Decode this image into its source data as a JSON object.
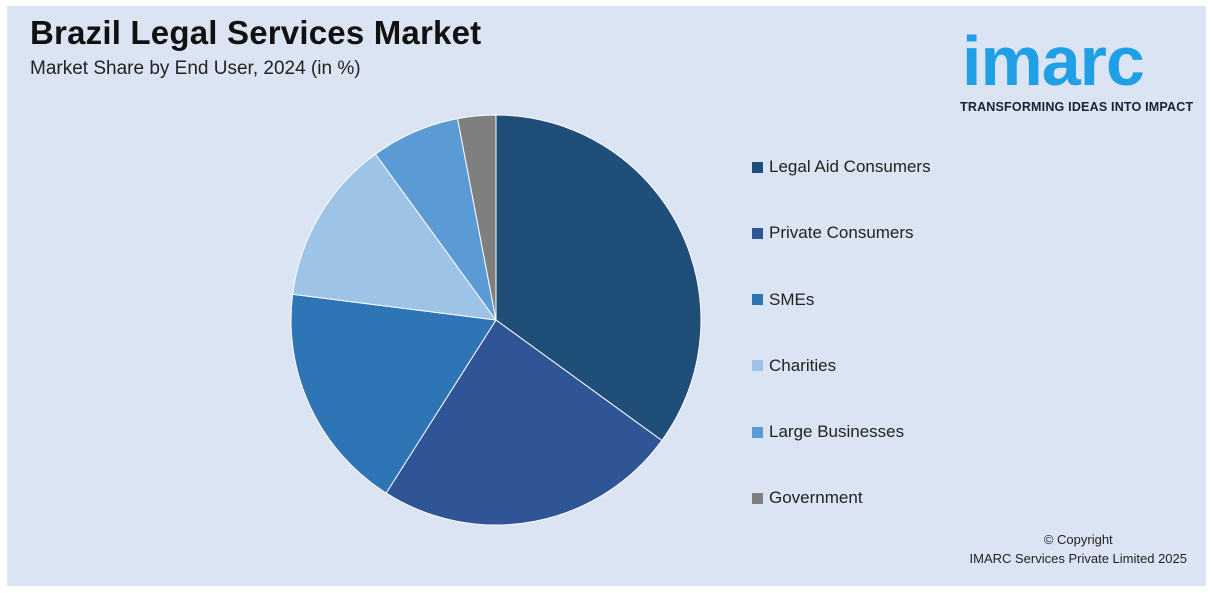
{
  "header": {
    "title": "Brazil Legal Services Market",
    "subtitle": "Market Share by End User, 2024 (in %)"
  },
  "logo": {
    "wordmark": "imarc",
    "tagline": "TRANSFORMING IDEAS INTO IMPACT",
    "color": "#1f9fe6"
  },
  "chart_data": {
    "type": "pie",
    "title": "Brazil Legal Services Market",
    "subtitle": "Market Share by End User, 2024 (in %)",
    "legend_position": "right",
    "slices": [
      {
        "label": "Legal Aid Consumers",
        "value": 35,
        "color": "#1f4e79"
      },
      {
        "label": "Private Consumers",
        "value": 24,
        "color": "#2f5597"
      },
      {
        "label": "SMEs",
        "value": 18,
        "color": "#2e75b6"
      },
      {
        "label": "Charities",
        "value": 13,
        "color": "#9dc3e6"
      },
      {
        "label": "Large Businesses",
        "value": 7,
        "color": "#5b9bd5"
      },
      {
        "label": "Government",
        "value": 3,
        "color": "#7f7f7f"
      }
    ]
  },
  "footer": {
    "copyright_line1": "© Copyright",
    "copyright_line2": "IMARC Services Private Limited 2025"
  }
}
